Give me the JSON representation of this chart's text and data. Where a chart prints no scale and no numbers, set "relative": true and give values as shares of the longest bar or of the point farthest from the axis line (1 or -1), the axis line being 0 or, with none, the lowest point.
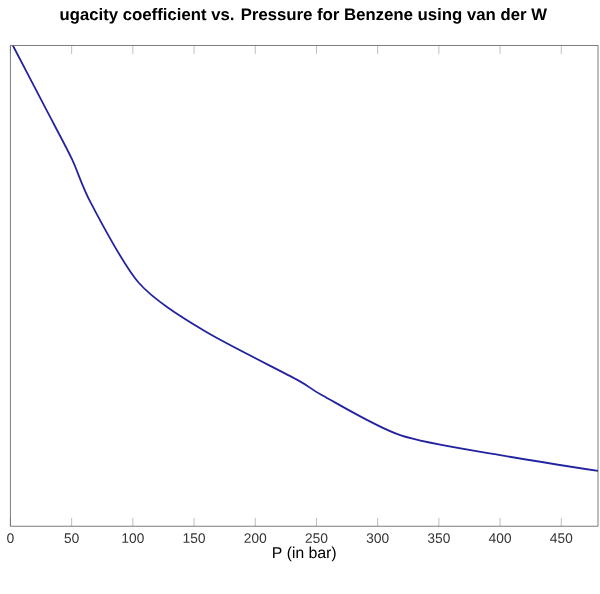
{
  "chart_data": {
    "type": "line",
    "title": "ugacity coefficient vs. Pressure for Benzene using van der W",
    "xlabel": "P (in bar)",
    "relative": true,
    "tick_labels": "x",
    "xlim": [
      0,
      480
    ],
    "xticks": [
      0,
      50,
      100,
      150,
      200,
      250,
      300,
      350,
      400,
      450
    ],
    "grid": false,
    "marker": "none",
    "line_style": "solid",
    "series": [
      {
        "color": "#2323a0",
        "x": [
          2,
          29,
          50,
          66,
          105,
          158,
          234,
          255,
          319,
          400,
          480
        ],
        "values": [
          1.0,
          0.868,
          0.765,
          0.671,
          0.506,
          0.407,
          0.305,
          0.272,
          0.189,
          0.148,
          0.115
        ]
      }
    ]
  }
}
